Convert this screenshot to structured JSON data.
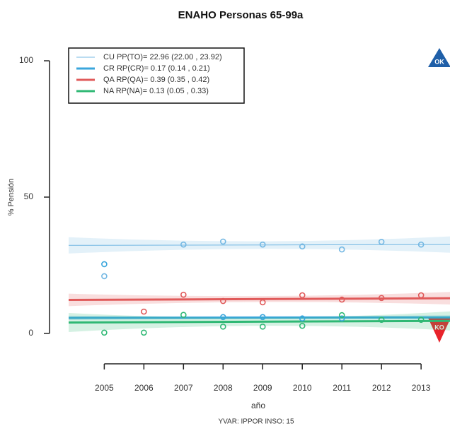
{
  "chart_data": {
    "type": "scatter",
    "title": "ENAHO Personas 65-99a",
    "x_label": "año",
    "y_label": "% Pensión",
    "footer": "YVAR: IPPOR INSO: 15",
    "badges": {
      "top": "OK",
      "bottom": "KO"
    },
    "legend": "top-left",
    "x": [
      2005,
      2006,
      2007,
      2008,
      2009,
      2010,
      2011,
      2012,
      2013
    ],
    "xlim": [
      2004.1,
      2013.73
    ],
    "xticks": [
      2005,
      2006,
      2007,
      2008,
      2009,
      2010,
      2011,
      2012,
      2013
    ],
    "ylim": [
      -4,
      104
    ],
    "yticks": [
      0,
      50,
      100
    ],
    "fit_x": [
      2004.1,
      2009,
      2013.73
    ],
    "series": [
      {
        "name": "CU PP(TO)= 22.96 (22.00 , 23.92)",
        "color": "#74b8e3",
        "width": 1,
        "values": [
          21,
          null,
          32.6,
          33.7,
          32.6,
          31.9,
          30.8,
          33.6,
          32.6
        ],
        "fit": [
          32.3,
          32.4,
          32.6
        ],
        "band_lower": [
          29.3,
          31.0,
          29.6
        ],
        "band_upper": [
          35.3,
          33.8,
          35.6
        ]
      },
      {
        "name": "CR RP(CR)= 0.17 (0.14 , 0.21)",
        "color": "#3aa6dc",
        "width": 3,
        "values": [
          25.4,
          null,
          null,
          6,
          6,
          5.5,
          5.5,
          null,
          null
        ],
        "fit": [
          5.7,
          5.8,
          5.9
        ],
        "band_lower": [
          4.9,
          5.3,
          5.1
        ],
        "band_upper": [
          6.5,
          6.3,
          6.7
        ]
      },
      {
        "name": "QA RP(QA)= 0.39 (0.35 , 0.42)",
        "color": "#e05a5a",
        "width": 3,
        "values": [
          null,
          8,
          14.2,
          11.9,
          11.4,
          14,
          12.4,
          13,
          14
        ],
        "fit": [
          12.3,
          12.6,
          12.9
        ],
        "band_lower": [
          10.0,
          11.5,
          10.6
        ],
        "band_upper": [
          14.6,
          13.7,
          15.2
        ]
      },
      {
        "name": "NA RP(NA)= 0.13 (0.05 , 0.33)",
        "color": "#2fb874",
        "width": 3,
        "values": [
          0.3,
          0.3,
          6.8,
          2.5,
          2.5,
          2.8,
          6.7,
          5,
          5
        ],
        "fit": [
          4.0,
          4.3,
          4.6
        ],
        "band_lower": [
          0.5,
          2.8,
          1.1
        ],
        "band_upper": [
          7.5,
          5.8,
          8.1
        ]
      }
    ]
  }
}
